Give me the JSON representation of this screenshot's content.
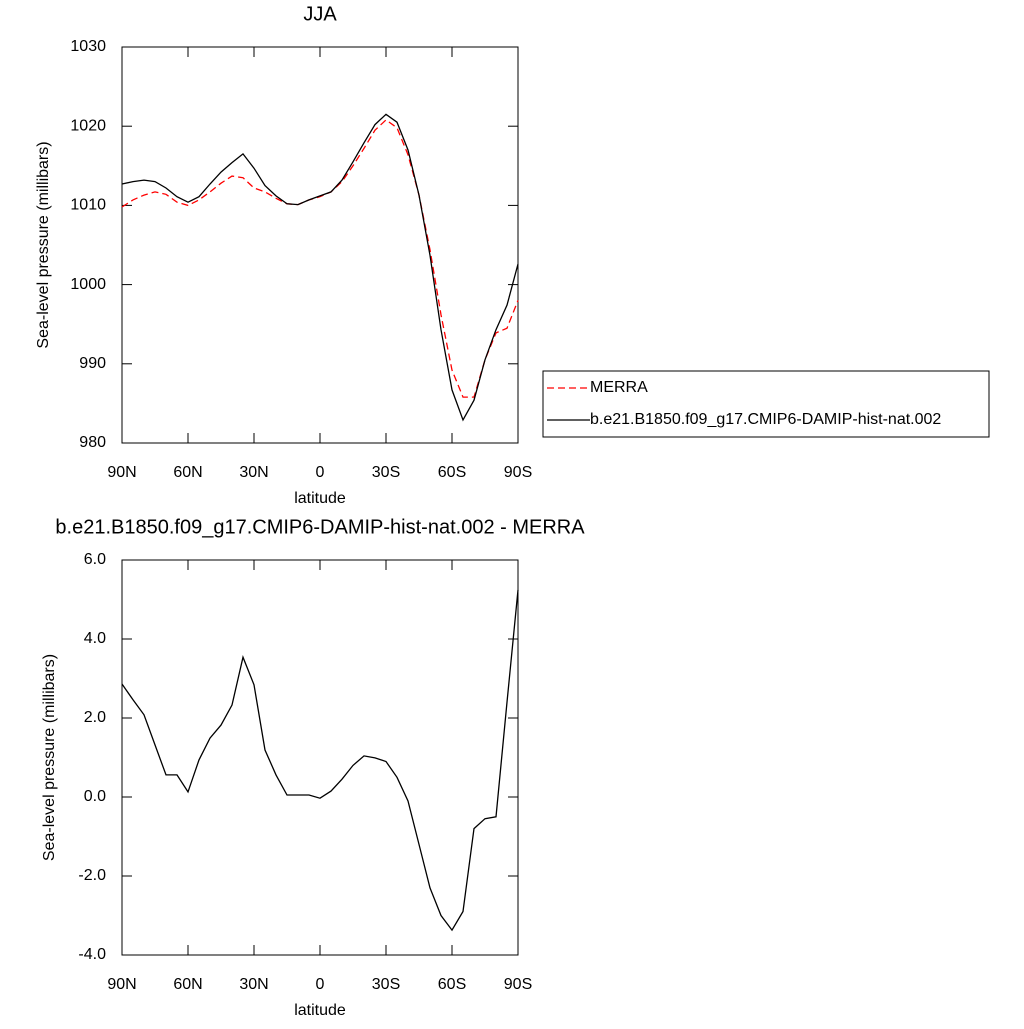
{
  "chart_data": [
    {
      "type": "line",
      "title": "JJA",
      "xlabel": "latitude",
      "ylabel": "Sea-level pressure (millibars)",
      "x": [
        90,
        85,
        80,
        75,
        70,
        65,
        60,
        55,
        50,
        45,
        40,
        35,
        30,
        25,
        20,
        15,
        10,
        5,
        0,
        -5,
        -10,
        -15,
        -20,
        -25,
        -30,
        -35,
        -40,
        -45,
        -50,
        -55,
        -60,
        -65,
        -70,
        -75,
        -80,
        -85,
        -90
      ],
      "xlim": [
        90,
        -90
      ],
      "xticks": [
        {
          "value": 90,
          "label": "90N"
        },
        {
          "value": 60,
          "label": "60N"
        },
        {
          "value": 30,
          "label": "30N"
        },
        0,
        {
          "value": -30,
          "label": "30S"
        },
        {
          "value": -60,
          "label": "60S"
        },
        {
          "value": -90,
          "label": "90S"
        }
      ],
      "ylim": [
        980,
        1030
      ],
      "yticks": [
        980,
        990,
        1000,
        1010,
        1020,
        1030
      ],
      "legend": "right",
      "series": [
        {
          "name": "MERRA",
          "color": "#ff0000",
          "dashed": true,
          "values": [
            1009.8,
            1010.7,
            1011.3,
            1011.7,
            1011.4,
            1010.4,
            1010.0,
            1010.7,
            1011.7,
            1012.8,
            1013.7,
            1013.5,
            1012.2,
            1011.7,
            1010.9,
            1010.2,
            1010.1,
            1010.7,
            1011.1,
            1011.7,
            1013.0,
            1015.0,
            1017.2,
            1019.5,
            1020.8,
            1019.8,
            1016.4,
            1011.3,
            1004.4,
            996.2,
            989.2,
            985.8,
            985.8,
            990.5,
            993.9,
            994.5,
            998.0
          ]
        },
        {
          "name": "b.e21.B1850.f09_g17.CMIP6-DAMIP-hist-nat.002",
          "color": "#000000",
          "dashed": false,
          "values": [
            1012.7,
            1013.0,
            1013.2,
            1013.0,
            1012.2,
            1011.1,
            1010.4,
            1011.1,
            1012.7,
            1014.2,
            1015.4,
            1016.5,
            1014.7,
            1012.5,
            1011.2,
            1010.2,
            1010.1,
            1010.7,
            1011.2,
            1011.7,
            1013.2,
            1015.5,
            1017.9,
            1020.2,
            1021.5,
            1020.5,
            1017.0,
            1011.3,
            1003.7,
            994.3,
            986.7,
            982.9,
            985.4,
            990.5,
            994.3,
            997.4,
            1002.6
          ]
        }
      ]
    },
    {
      "type": "line",
      "title": "b.e21.B1850.f09_g17.CMIP6-DAMIP-hist-nat.002 - MERRA",
      "xlabel": "latitude",
      "ylabel": "Sea-level pressure (millibars)",
      "x": [
        90,
        85,
        80,
        75,
        70,
        65,
        60,
        55,
        50,
        45,
        40,
        35,
        30,
        25,
        20,
        15,
        10,
        5,
        0,
        -5,
        -10,
        -15,
        -20,
        -25,
        -30,
        -35,
        -40,
        -45,
        -50,
        -55,
        -60,
        -65,
        -70,
        -75,
        -80,
        -85,
        -90
      ],
      "xlim": [
        90,
        -90
      ],
      "xticks": [
        {
          "value": 90,
          "label": "90N"
        },
        {
          "value": 60,
          "label": "60N"
        },
        {
          "value": 30,
          "label": "30N"
        },
        0,
        {
          "value": -30,
          "label": "30S"
        },
        {
          "value": -60,
          "label": "60S"
        },
        {
          "value": -90,
          "label": "90S"
        }
      ],
      "ylim": [
        -4,
        6
      ],
      "yticks": [
        {
          "value": -4,
          "label": "-4.0"
        },
        {
          "value": -2,
          "label": "-2.0"
        },
        {
          "value": 0,
          "label": "0.0"
        },
        {
          "value": 2,
          "label": "2.0"
        },
        {
          "value": 4,
          "label": "4.0"
        },
        {
          "value": 6,
          "label": "6.0"
        }
      ],
      "series": [
        {
          "color": "#000000",
          "dashed": false,
          "values": [
            2.86,
            2.46,
            2.08,
            1.32,
            0.56,
            0.56,
            0.13,
            0.94,
            1.49,
            1.82,
            2.33,
            3.54,
            2.84,
            1.19,
            0.56,
            0.05,
            0.05,
            0.05,
            -0.03,
            0.15,
            0.45,
            0.8,
            1.04,
            0.99,
            0.9,
            0.5,
            -0.1,
            -1.2,
            -2.3,
            -3.0,
            -3.37,
            -2.9,
            -0.8,
            -0.55,
            -0.5,
            2.4,
            5.24
          ]
        }
      ]
    }
  ]
}
